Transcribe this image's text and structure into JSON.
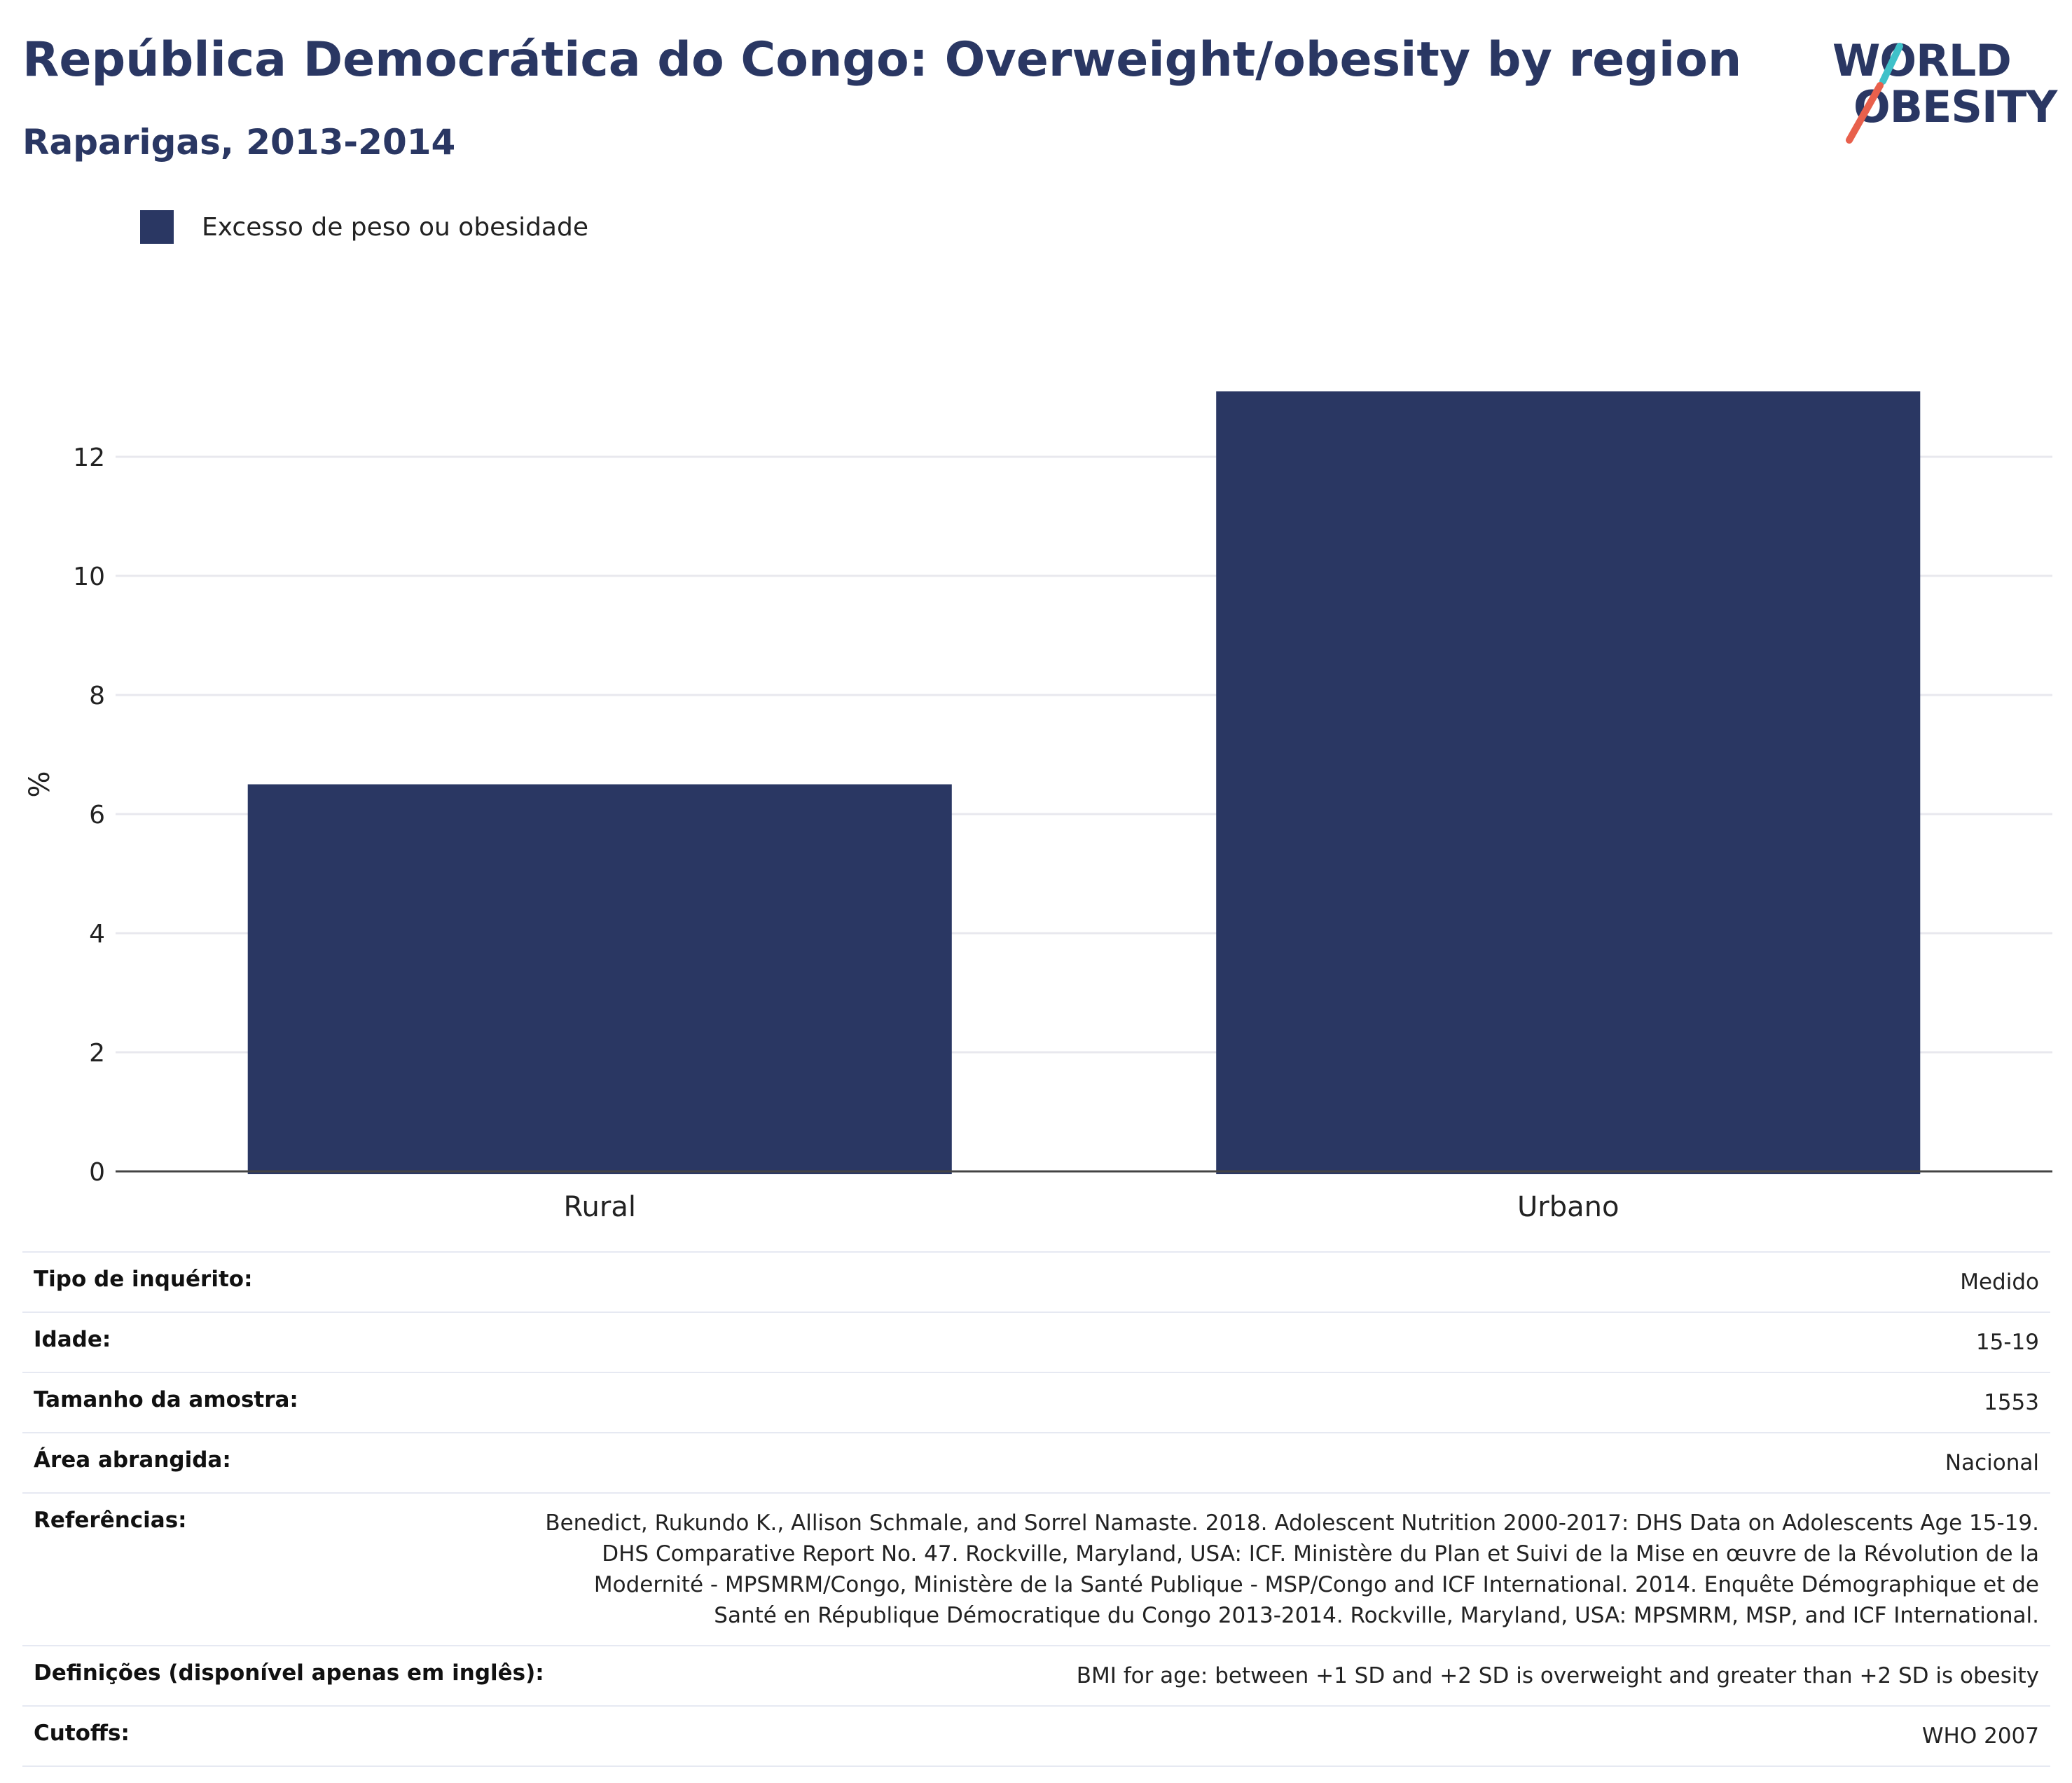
{
  "header": {
    "title": "República Democrática do Congo: Overweight/obesity by region",
    "subtitle": "Raparigas, 2013-2014"
  },
  "logo": {
    "line1": "WORLD",
    "line2": "OBESITY",
    "accent_colors": [
      "#3fc1c9",
      "#e8604c"
    ]
  },
  "colors": {
    "bar": "#2a3763",
    "text_dark": "#2a3763",
    "grid": "#e8e8ee"
  },
  "legend": {
    "label": "Excesso de peso ou obesidade"
  },
  "chart_data": {
    "type": "bar",
    "categories": [
      "Rural",
      "Urbano"
    ],
    "series": [
      {
        "name": "Excesso de peso ou obesidade",
        "values": [
          6.5,
          13.1
        ]
      }
    ],
    "ylabel": "%",
    "xlabel": "",
    "ylim": [
      0,
      14
    ],
    "yticks": [
      0,
      2,
      4,
      6,
      8,
      10,
      12
    ],
    "grid": true,
    "legend_position": "top-left"
  },
  "info_table": [
    {
      "key": "Tipo de inquérito:",
      "value": "Medido"
    },
    {
      "key": "Idade:",
      "value": "15-19"
    },
    {
      "key": "Tamanho da amostra:",
      "value": "1553"
    },
    {
      "key": "Área abrangida:",
      "value": "Nacional"
    },
    {
      "key": "Referências:",
      "value": "Benedict, Rukundo K., Allison Schmale, and Sorrel Namaste. 2018. Adolescent Nutrition 2000-2017: DHS Data on Adolescents Age 15-19. DHS Comparative Report No. 47. Rockville, Maryland, USA: ICF. Ministère du Plan et Suivi de la Mise en œuvre de la Révolution de la Modernité - MPSMRM/Congo, Ministère de la Santé Publique - MSP/Congo and ICF International. 2014. Enquête Démographique et de Santé en République Démocratique du Congo 2013-2014. Rockville, Maryland, USA: MPSMRM, MSP, and ICF International."
    },
    {
      "key": "Definições (disponível apenas em inglês):",
      "value": "BMI for age: between +1 SD and +2 SD is overweight and greater than +2 SD is obesity"
    },
    {
      "key": "Cutoffs:",
      "value": "WHO 2007"
    }
  ]
}
